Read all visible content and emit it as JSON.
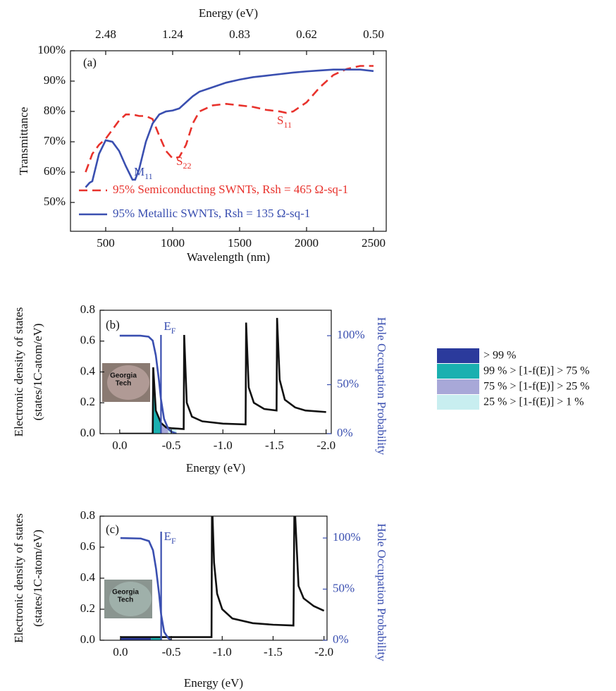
{
  "chart_data": [
    {
      "type": "line",
      "panel_label": "(a)",
      "xlabel": "Wavelength (nm)",
      "ylabel": "Transmittance",
      "x2label": "Energy (eV)",
      "xlim": [
        237,
        2595
      ],
      "xticks": [
        500,
        1000,
        1500,
        2000,
        2500
      ],
      "x2ticks": [
        {
          "value": 500,
          "label": "2.48"
        },
        {
          "value": 1000,
          "label": "1.24"
        },
        {
          "value": 1500,
          "label": "0.83"
        },
        {
          "value": 2000,
          "label": "0.62"
        },
        {
          "value": 2500,
          "label": "0.50"
        }
      ],
      "ylim": [
        40.5,
        100
      ],
      "yticks": [
        {
          "value": 50,
          "label": "50%"
        },
        {
          "value": 60,
          "label": "60%"
        },
        {
          "value": 70,
          "label": "70%"
        },
        {
          "value": 80,
          "label": "80%"
        },
        {
          "value": 90,
          "label": "90%"
        },
        {
          "value": 100,
          "label": "100%"
        }
      ],
      "series": [
        {
          "name": "95% Semiconducting SWNTs, Rsh = 465 Ω-sq-1",
          "color": "#e8322c",
          "line_style": "dashed",
          "x": [
            350,
            400,
            450,
            500,
            550,
            600,
            650,
            700,
            750,
            800,
            850,
            900,
            950,
            1000,
            1050,
            1100,
            1150,
            1200,
            1300,
            1400,
            1500,
            1600,
            1700,
            1800,
            1850,
            1900,
            2000,
            2100,
            2200,
            2300,
            2400,
            2500
          ],
          "values": [
            60,
            66,
            69,
            71,
            74,
            77,
            79,
            79,
            78.5,
            78.5,
            77.5,
            72,
            67,
            64.5,
            65,
            69,
            76,
            80,
            82,
            82.5,
            82,
            81.5,
            80.5,
            80,
            79.5,
            80,
            83,
            88,
            92,
            94,
            95,
            95
          ]
        },
        {
          "name": "95% Metallic SWNTs, Rsh = 135 Ω-sq-1",
          "color": "#3a4fb0",
          "line_style": "solid",
          "x": [
            350,
            380,
            400,
            450,
            500,
            550,
            600,
            650,
            700,
            720,
            750,
            800,
            850,
            900,
            950,
            1000,
            1050,
            1100,
            1150,
            1200,
            1300,
            1400,
            1500,
            1600,
            1700,
            1800,
            1900,
            2000,
            2100,
            2200,
            2300,
            2400,
            2500
          ],
          "values": [
            55,
            56.5,
            57,
            66,
            70.5,
            70,
            67,
            62,
            57.5,
            57.5,
            61,
            70,
            76,
            79,
            80,
            80.3,
            81,
            83,
            85,
            86.5,
            88,
            89.5,
            90.5,
            91.3,
            91.8,
            92.3,
            92.8,
            93.2,
            93.5,
            93.8,
            93.8,
            93.8,
            93.3
          ]
        }
      ],
      "annotations": [
        {
          "text": "M",
          "sub": "11"
        },
        {
          "text": "S",
          "sub": "22"
        },
        {
          "text": "S",
          "sub": "11"
        }
      ]
    },
    {
      "type": "line",
      "panel_label": "(b)",
      "xlabel": "Energy (eV)",
      "ylabel": [
        "Electronic density of states",
        "(states/1C-atom/eV)"
      ],
      "y2label": "Hole Occupation Probability",
      "xlim": [
        0.19,
        -2.05
      ],
      "xticks": [
        {
          "value": 0,
          "label": "0.0"
        },
        -0.5,
        {
          "value": -1,
          "label": "-1.0"
        },
        -1.5,
        {
          "value": -2,
          "label": "-2.0"
        }
      ],
      "ylim": [
        0,
        0.8
      ],
      "yticks": [
        {
          "value": 0,
          "label": "0.0"
        },
        0.2,
        0.4,
        0.6,
        0.8
      ],
      "y2lim": [
        0,
        126
      ],
      "y2ticks": [
        {
          "value": 0,
          "label": "0%"
        },
        {
          "value": 50,
          "label": "50%"
        },
        {
          "value": 100,
          "label": "100%"
        }
      ],
      "series": [
        {
          "color": "#111111",
          "line_style": "solid",
          "x": [
            0,
            -0.32,
            -0.325,
            -0.35,
            -0.4,
            -0.45,
            -0.5,
            -0.62,
            -0.625,
            -0.65,
            -0.7,
            -0.8,
            -1.0,
            -1.22,
            -1.225,
            -1.25,
            -1.3,
            -1.4,
            -1.52,
            -1.525,
            -1.55,
            -1.6,
            -1.7,
            -1.8,
            -2.0
          ],
          "values": [
            0,
            0,
            0.43,
            0.15,
            0.07,
            0.04,
            0.035,
            0.03,
            0.64,
            0.2,
            0.11,
            0.08,
            0.065,
            0.06,
            0.72,
            0.3,
            0.2,
            0.16,
            0.15,
            0.75,
            0.35,
            0.22,
            0.17,
            0.15,
            0.14
          ]
        },
        {
          "color": "#3a4fb0",
          "line_style": "solid",
          "axis": "y2",
          "x": [
            0,
            -0.2,
            -0.28,
            -0.32,
            -0.35,
            -0.38,
            -0.4,
            -0.43,
            -0.47,
            -0.5,
            -0.55
          ],
          "values": [
            100,
            100,
            99,
            95,
            80,
            55,
            35,
            15,
            5,
            2,
            0
          ]
        }
      ],
      "fermi_level": -0.4,
      "occupancy_fill": [
        {
          "x": [
            -0.32,
            -0.4
          ],
          "color": "#1ab0b0"
        },
        {
          "x": [
            -0.4,
            -0.47
          ],
          "color": "#a8a8d8"
        },
        {
          "x": [
            -0.47,
            -0.55
          ],
          "color": "#c8eef0"
        }
      ],
      "annotations": [
        {
          "text": "E",
          "sub": "F"
        }
      ],
      "inset_text": [
        "Georgia",
        "Tech"
      ]
    },
    {
      "type": "line",
      "panel_label": "(c)",
      "xlabel": "Energy (eV)",
      "ylabel": [
        "Electronic density of states",
        "(states/1C-atom/eV)"
      ],
      "y2label": "Hole Occupation Probability",
      "xlim": [
        0.2,
        -2.03
      ],
      "xticks": [
        {
          "value": 0,
          "label": "0.0"
        },
        -0.5,
        {
          "value": -1,
          "label": "-1.0"
        },
        -1.5,
        {
          "value": -2,
          "label": "-2.0"
        }
      ],
      "ylim": [
        0,
        0.8
      ],
      "yticks": [
        {
          "value": 0,
          "label": "0.0"
        },
        0.2,
        0.4,
        0.6,
        0.8
      ],
      "y2lim": [
        0,
        121.4
      ],
      "y2ticks": [
        {
          "value": 0,
          "label": "0%"
        },
        {
          "value": 50,
          "label": "50%"
        },
        {
          "value": 100,
          "label": "100%"
        }
      ],
      "series": [
        {
          "color": "#111111",
          "line_style": "solid",
          "x": [
            0,
            -0.3,
            -0.5,
            -0.895,
            -0.9,
            -0.92,
            -0.95,
            -1.0,
            -1.1,
            -1.3,
            -1.5,
            -1.7,
            -1.71,
            -1.75,
            -1.8,
            -1.9,
            -2.0
          ],
          "values": [
            0.02,
            0.02,
            0.02,
            0.02,
            0.9,
            0.5,
            0.3,
            0.2,
            0.14,
            0.11,
            0.1,
            0.095,
            0.9,
            0.35,
            0.27,
            0.22,
            0.19
          ]
        },
        {
          "color": "#3a4fb0",
          "line_style": "solid",
          "axis": "y2",
          "x": [
            0,
            -0.2,
            -0.28,
            -0.32,
            -0.35,
            -0.38,
            -0.4,
            -0.43,
            -0.47,
            -0.5
          ],
          "values": [
            100,
            99.5,
            97,
            88,
            70,
            45,
            25,
            8,
            2,
            0
          ]
        }
      ],
      "fermi_level": -0.4,
      "occupancy_fill": [
        {
          "x": [
            0,
            -0.3
          ],
          "color": "#2b3a9c"
        },
        {
          "x": [
            -0.3,
            -0.4
          ],
          "color": "#1ab0b0"
        }
      ],
      "annotations": [
        {
          "text": "E",
          "sub": "F"
        }
      ],
      "inset_text": [
        "Georgia",
        "Tech"
      ]
    }
  ],
  "occupation_legend": [
    {
      "label": "> 99 %",
      "color": "#2b3a9c"
    },
    {
      "label": "99 % > [1-f(E)] > 75 %",
      "color": "#1ab0b0"
    },
    {
      "label": "75 % > [1-f(E)] > 25 %",
      "color": "#a8a8d8"
    },
    {
      "label": "25 % > [1-f(E)] > 1 %",
      "color": "#c8eef0"
    }
  ]
}
